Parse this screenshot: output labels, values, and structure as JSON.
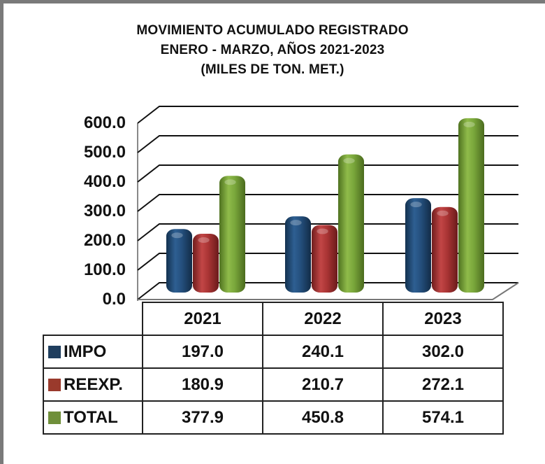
{
  "title": {
    "line1": "MOVIMIENTO ACUMULADO REGISTRADO",
    "line2": "ENERO - MARZO, AÑOS 2021-2023",
    "line3": "(MILES DE TON. MET.)"
  },
  "colors": {
    "impo": "#1f4e79",
    "reexp": "#a93232",
    "total": "#77a33a"
  },
  "y_ticks": [
    "600.0",
    "500.0",
    "400.0",
    "300.0",
    "200.0",
    "100.0",
    "0.0"
  ],
  "table": {
    "headers": [
      "2021",
      "2022",
      "2023"
    ],
    "rows": [
      {
        "label": "IMPO",
        "values": [
          "197.0",
          "240.1",
          "302.0"
        ]
      },
      {
        "label": "REEXP.",
        "values": [
          "180.9",
          "210.7",
          "272.1"
        ]
      },
      {
        "label": "TOTAL",
        "values": [
          "377.9",
          "450.8",
          "574.1"
        ]
      }
    ]
  },
  "chart_data": {
    "type": "bar",
    "title": "MOVIMIENTO ACUMULADO REGISTRADO ENERO - MARZO, AÑOS 2021-2023 (MILES DE TON. MET.)",
    "categories": [
      "2021",
      "2022",
      "2023"
    ],
    "series": [
      {
        "name": "IMPO",
        "values": [
          197.0,
          240.1,
          302.0
        ]
      },
      {
        "name": "REEXP.",
        "values": [
          180.9,
          210.7,
          272.1
        ]
      },
      {
        "name": "TOTAL",
        "values": [
          377.9,
          450.8,
          574.1
        ]
      }
    ],
    "xlabel": "",
    "ylabel": "",
    "ylim": [
      0,
      600
    ],
    "yticks": [
      0,
      100,
      200,
      300,
      400,
      500,
      600
    ],
    "grid": true,
    "legend_position": "data table (below)",
    "style": "3D clustered cylinder bars with data table"
  }
}
